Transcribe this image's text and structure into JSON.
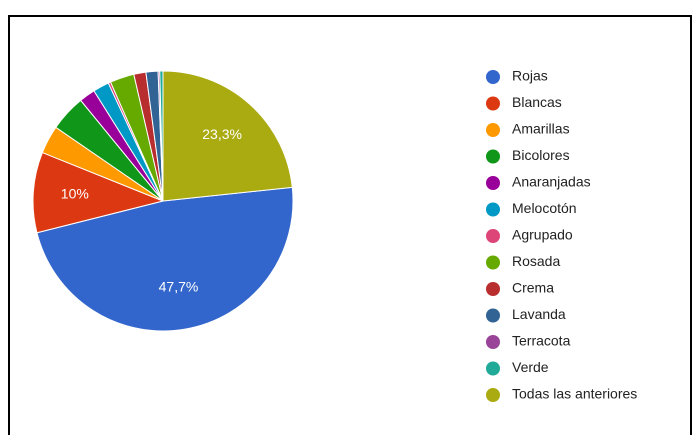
{
  "chart_data": {
    "type": "pie",
    "categories": [
      "Rojas",
      "Blancas",
      "Amarillas",
      "Bicolores",
      "Anaranjadas",
      "Melocotón",
      "Agrupado",
      "Rosada",
      "Crema",
      "Lavanda",
      "Terracota",
      "Verde",
      "Todas las anteriores"
    ],
    "values": [
      47.7,
      10,
      3.5,
      4.5,
      2,
      2,
      0.3,
      3,
      1.5,
      1.5,
      0.2,
      0.4,
      23.3
    ],
    "value_labels": [
      "47,7%",
      "10%",
      null,
      null,
      null,
      null,
      null,
      null,
      null,
      null,
      null,
      null,
      "23,3%"
    ],
    "colors": [
      "#3366cc",
      "#dc3912",
      "#ff9900",
      "#109618",
      "#990099",
      "#0099c6",
      "#dd4477",
      "#66aa00",
      "#b82e2e",
      "#316395",
      "#994499",
      "#22aa99",
      "#aaaa11"
    ],
    "legend": "right"
  }
}
